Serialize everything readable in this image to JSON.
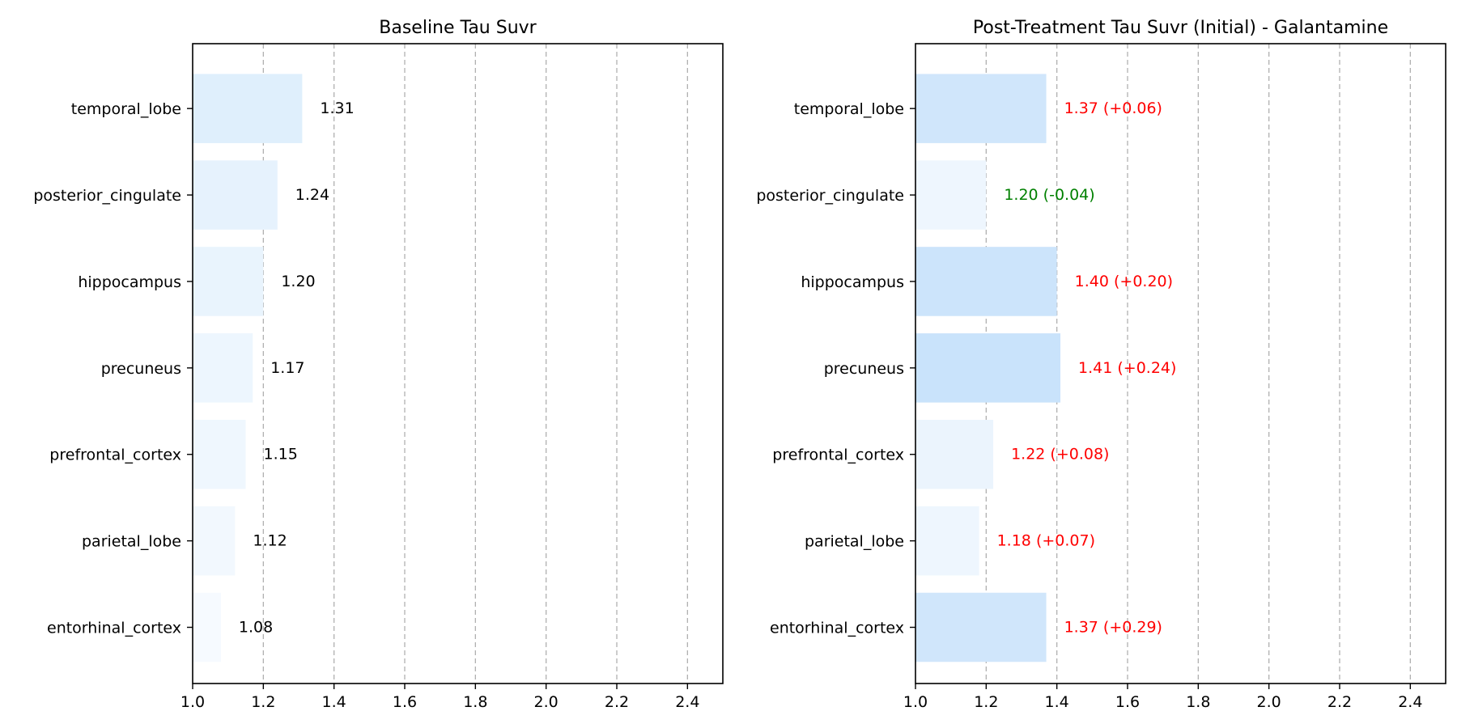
{
  "chart_data": [
    {
      "type": "bar",
      "orientation": "horizontal",
      "title": "Baseline Tau Suvr",
      "categories": [
        "temporal_lobe",
        "posterior_cingulate",
        "hippocampus",
        "precuneus",
        "prefrontal_cortex",
        "parietal_lobe",
        "entorhinal_cortex"
      ],
      "values": [
        1.31,
        1.24,
        1.2,
        1.17,
        1.15,
        1.12,
        1.08
      ],
      "data_labels": [
        "1.31",
        "1.24",
        "1.20",
        "1.17",
        "1.15",
        "1.12",
        "1.08"
      ],
      "label_colors": [
        "#000000",
        "#000000",
        "#000000",
        "#000000",
        "#000000",
        "#000000",
        "#000000"
      ],
      "bar_colors": [
        "#dfeffc",
        "#e6f2fd",
        "#e9f4fd",
        "#edf6fe",
        "#eff7fe",
        "#f2f8fe",
        "#f6faff"
      ],
      "xlim": [
        1.0,
        2.5
      ],
      "xticks": [
        1.0,
        1.2,
        1.4,
        1.6,
        1.8,
        2.0,
        2.2,
        2.4
      ],
      "xtick_labels": [
        "1.0",
        "1.2",
        "1.4",
        "1.6",
        "1.8",
        "2.0",
        "2.2",
        "2.4"
      ],
      "grid": "x-dashed",
      "xlabel": "",
      "ylabel": ""
    },
    {
      "type": "bar",
      "orientation": "horizontal",
      "title": "Post-Treatment Tau Suvr (Initial) - Galantamine",
      "categories": [
        "temporal_lobe",
        "posterior_cingulate",
        "hippocampus",
        "precuneus",
        "prefrontal_cortex",
        "parietal_lobe",
        "entorhinal_cortex"
      ],
      "values": [
        1.37,
        1.2,
        1.4,
        1.41,
        1.22,
        1.18,
        1.37
      ],
      "data_labels": [
        "1.37 (+0.06)",
        "1.20 (-0.04)",
        "1.40 (+0.20)",
        "1.41 (+0.24)",
        "1.22 (+0.08)",
        "1.18 (+0.07)",
        "1.37 (+0.29)"
      ],
      "label_colors": [
        "#ff0000",
        "#008000",
        "#ff0000",
        "#ff0000",
        "#ff0000",
        "#ff0000",
        "#ff0000"
      ],
      "bar_colors": [
        "#d0e6fb",
        "#eef6fe",
        "#cce4fb",
        "#c9e3fb",
        "#ebf4fd",
        "#eef6fe",
        "#d0e6fb"
      ],
      "xlim": [
        1.0,
        2.5
      ],
      "xticks": [
        1.0,
        1.2,
        1.4,
        1.6,
        1.8,
        2.0,
        2.2,
        2.4
      ],
      "xtick_labels": [
        "1.0",
        "1.2",
        "1.4",
        "1.6",
        "1.8",
        "2.0",
        "2.2",
        "2.4"
      ],
      "grid": "x-dashed",
      "xlabel": "",
      "ylabel": ""
    }
  ]
}
